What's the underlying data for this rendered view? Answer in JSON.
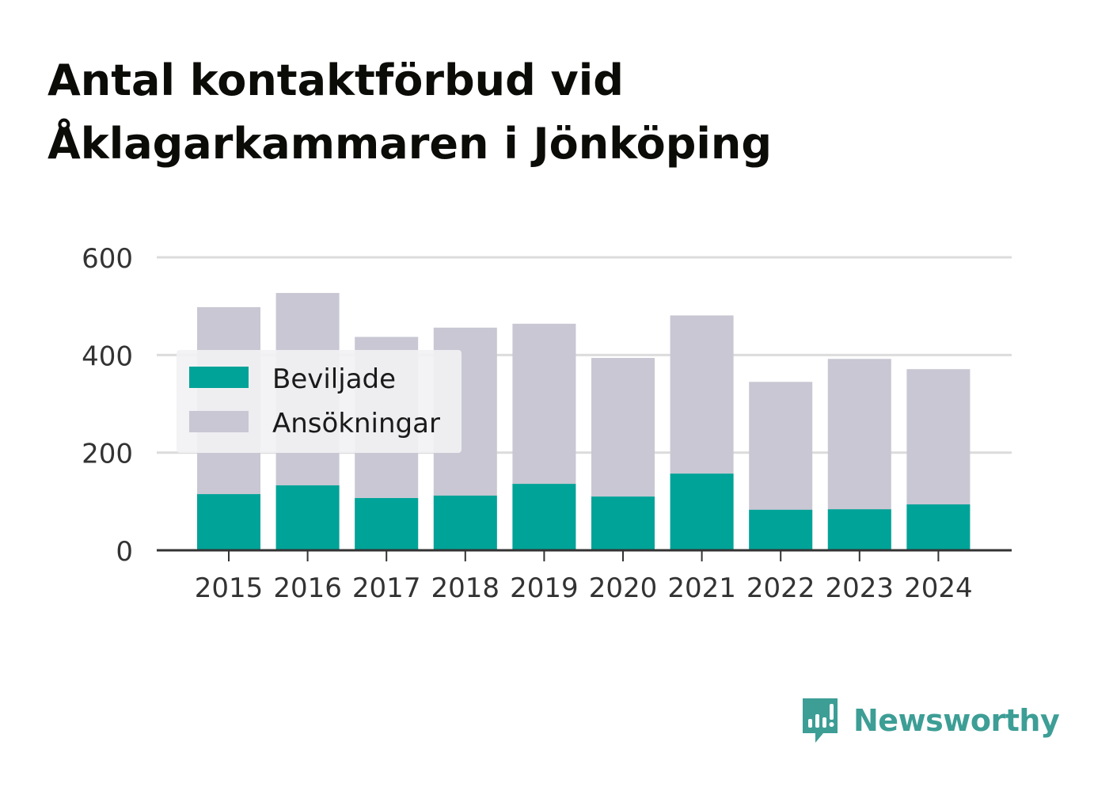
{
  "title_lines": [
    "Antal kontaktförbud vid",
    "Åklagarkammaren i Jönköping"
  ],
  "chart_data": {
    "type": "bar",
    "stacked": true,
    "categories": [
      "2015",
      "2016",
      "2017",
      "2018",
      "2019",
      "2020",
      "2021",
      "2022",
      "2023",
      "2024"
    ],
    "series": [
      {
        "name": "Beviljade",
        "color": "#00a398",
        "values": [
          115,
          133,
          107,
          112,
          136,
          110,
          157,
          83,
          84,
          94
        ]
      },
      {
        "name": "Ansökningar",
        "color": "#c8c7d3",
        "values": [
          498,
          527,
          437,
          456,
          464,
          394,
          481,
          345,
          392,
          371
        ]
      }
    ],
    "note": "Ansökningar values are totals; bars overlap with Beviljade drawn in front",
    "ylim": [
      0,
      600
    ],
    "yticks": [
      0,
      200,
      400,
      600
    ],
    "grid": true,
    "legend": "top-left"
  },
  "brand": {
    "name": "Newsworthy",
    "color": "#3d9e96"
  }
}
